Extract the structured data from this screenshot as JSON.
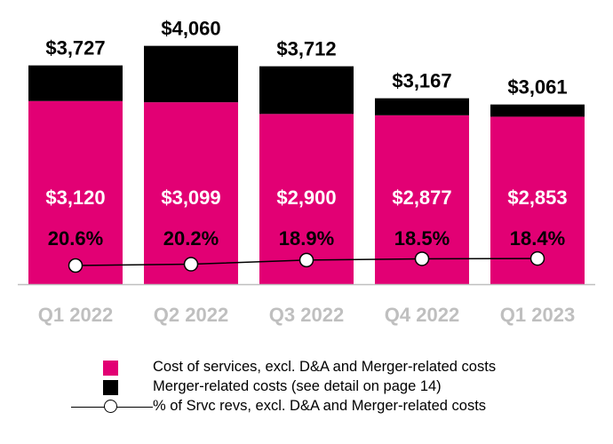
{
  "chart_data": {
    "type": "bar",
    "stacked": true,
    "title": "",
    "xlabel": "",
    "ylabel": "",
    "categories": [
      "Q1 2022",
      "Q2 2022",
      "Q3 2022",
      "Q4 2022",
      "Q1 2023"
    ],
    "series": [
      {
        "name": "Cost of services, excl. D&A and Merger-related costs",
        "type": "bar",
        "color": "#E20074",
        "values": [
          3120,
          3099,
          2900,
          2877,
          2853
        ],
        "labels": [
          "$3,120",
          "$3,099",
          "$2,900",
          "$2,877",
          "$2,853"
        ]
      },
      {
        "name": "Merger-related costs (see detail on page 14)",
        "type": "bar",
        "color": "#000000",
        "values": [
          607,
          961,
          812,
          290,
          208
        ]
      },
      {
        "name": "% of Srvc revs, excl. D&A and Merger-related costs",
        "type": "line",
        "color": "#000000",
        "values": [
          20.6,
          20.2,
          18.9,
          18.5,
          18.4
        ],
        "labels": [
          "20.6%",
          "20.2%",
          "18.9%",
          "18.5%",
          "18.4%"
        ]
      }
    ],
    "totals": [
      3727,
      4060,
      3712,
      3167,
      3061
    ],
    "total_labels": [
      "$3,727",
      "$4,060",
      "$3,712",
      "$3,167",
      "$3,061"
    ],
    "ylim": [
      0,
      4500
    ],
    "line_ylim": [
      0,
      100
    ],
    "grid": false,
    "legend_position": "bottom",
    "tick_label_color": "#BFBFBF"
  },
  "legend": [
    {
      "label": "Cost of services, excl. D&A and Merger-related costs",
      "kind": "square",
      "color": "#E20074"
    },
    {
      "label": "Merger-related costs (see detail on page 14)",
      "kind": "square",
      "color": "#000000"
    },
    {
      "label": "% of Srvc revs, excl. D&A and Merger-related costs",
      "kind": "line-marker",
      "color": "#000000"
    }
  ]
}
